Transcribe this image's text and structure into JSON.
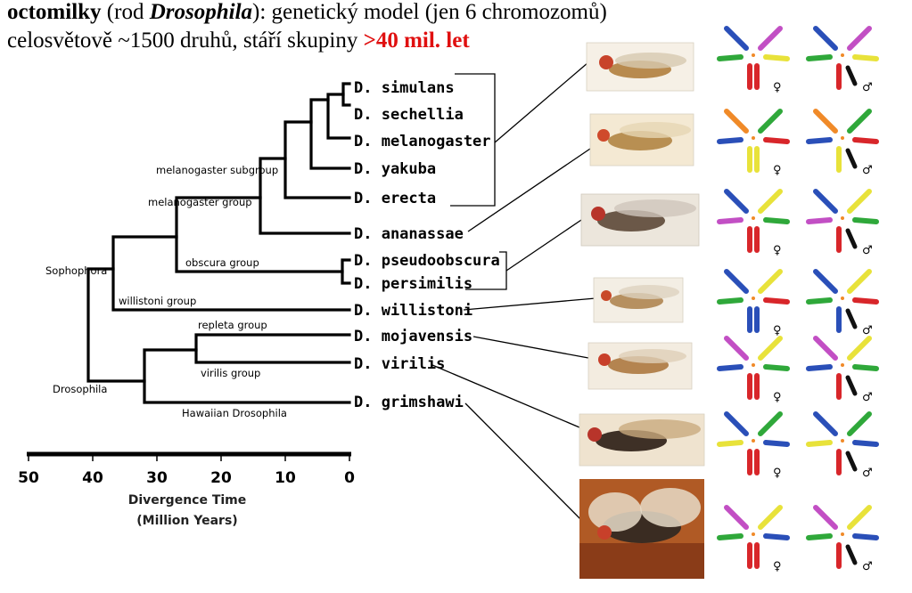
{
  "header": {
    "line1_bold": "octomilky",
    "line1_a": " (rod ",
    "line1_genus": "Drosophila",
    "line1_b": "): genetický model (jen 6 chromozomů)",
    "line2_a": "celosvětově  ~1500 druhů, stáří skupiny ",
    "line2_red": ">40 mil. let"
  },
  "species": [
    "D. simulans",
    "D. sechellia",
    "D. melanogaster",
    "D. yakuba",
    "D. erecta",
    "D. ananassae",
    "D. pseudoobscura",
    "D. persimilis",
    "D. willistoni",
    "D. mojavensis",
    "D. virilis",
    "D. grimshawi"
  ],
  "groups": {
    "melanogaster_subgroup": "melanogaster subgroup",
    "melanogaster_group": "melanogaster group",
    "obscura_group": "obscura group",
    "sophophora": "Sophophora",
    "willistoni_group": "willistoni group",
    "repleta_group": "repleta group",
    "virilis_group": "virilis group",
    "drosophila": "Drosophila",
    "hawaiian": "Hawaiian Drosophila"
  },
  "axis": {
    "ticks": [
      "50",
      "40",
      "30",
      "20",
      "10",
      "0"
    ],
    "label_line1": "Divergence Time",
    "label_line2": "(Million Years)"
  },
  "sex_symbols": {
    "female": "♀",
    "male": "♂"
  },
  "colors": {
    "red_highlight": "#e01010",
    "chrom_blue": "#2a4fb8",
    "chrom_green": "#2fa83a",
    "chrom_red": "#d8262a",
    "chrom_yellow": "#e8e23a",
    "chrom_magenta": "#c24fc4",
    "chrom_orange": "#f08a28",
    "chrom_black": "#111111"
  }
}
